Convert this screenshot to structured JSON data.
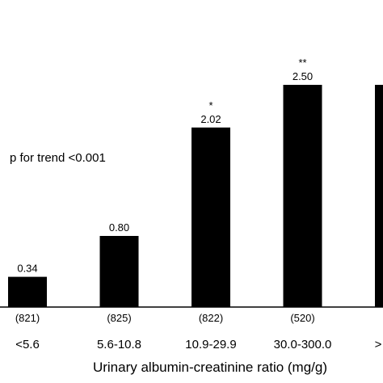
{
  "chart_data": {
    "type": "bar",
    "categories": [
      "<5.6",
      "5.6-10.8",
      "10.9-29.9",
      "30.0-300.0",
      ">"
    ],
    "values": [
      0.34,
      0.8,
      2.02,
      2.5,
      2.5
    ],
    "value_labels": [
      "0.34",
      "0.80",
      "2.02",
      "2.50",
      ""
    ],
    "significance": [
      "",
      "",
      "*",
      "**",
      ""
    ],
    "n_labels": [
      "(821)",
      "(825)",
      "(822)",
      "(520)",
      ""
    ],
    "xlabel": "Urinary albumin-creatinine ratio (mg/g)",
    "ylabel": "",
    "ylim": [
      0,
      3.0
    ],
    "annotation": "p for trend <0.001",
    "bar_color": "#000000",
    "grid": false
  }
}
